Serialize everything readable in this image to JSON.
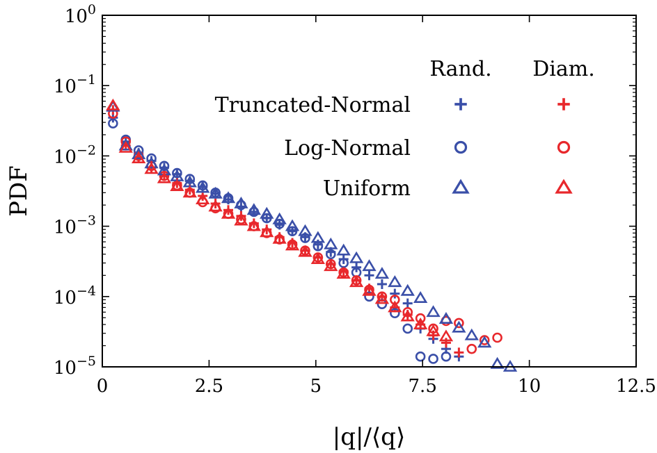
{
  "chart_data": {
    "type": "scatter",
    "title": "",
    "xlabel": "|q|/⟨q⟩",
    "ylabel": "PDF",
    "xlim": [
      0,
      12.5
    ],
    "ylim": [
      1e-05,
      1
    ],
    "yscale": "log",
    "x_ticks": [
      {
        "value": 0,
        "label": "0"
      },
      {
        "value": 2.5,
        "label": "2.5"
      },
      {
        "value": 5,
        "label": "5"
      },
      {
        "value": 7.5,
        "label": "7.5"
      },
      {
        "value": 10,
        "label": "10"
      },
      {
        "value": 12.5,
        "label": "12.5"
      }
    ],
    "y_ticks": [
      {
        "value": 1,
        "base": "10",
        "exp": "0"
      },
      {
        "value": 0.1,
        "base": "10",
        "exp": "−1"
      },
      {
        "value": 0.01,
        "base": "10",
        "exp": "−2"
      },
      {
        "value": 0.001,
        "base": "10",
        "exp": "−3"
      },
      {
        "value": 0.0001,
        "base": "10",
        "exp": "−4"
      },
      {
        "value": 1e-05,
        "base": "10",
        "exp": "−5"
      }
    ],
    "grid": false,
    "legend": {
      "placement": "top-right",
      "column_headers": [
        "Rand.",
        "Diam."
      ],
      "rows": [
        "Truncated-Normal",
        "Log-Normal",
        "Uniform"
      ]
    },
    "colors": {
      "rand": "#3a4fa8",
      "diam": "#e8282c"
    },
    "series": [
      {
        "distribution": "Truncated-Normal",
        "sampling": "Rand.",
        "marker": "plus",
        "color": "#3a4fa8",
        "x": [
          0.25,
          0.55,
          0.85,
          1.15,
          1.45,
          1.75,
          2.05,
          2.35,
          2.65,
          2.95,
          3.25,
          3.55,
          3.85,
          4.15,
          4.45,
          4.75,
          5.05,
          5.35,
          5.65,
          5.95,
          6.25,
          6.55,
          6.85,
          7.15,
          7.45,
          7.75,
          8.05,
          8.35
        ],
        "y": [
          0.035,
          0.016,
          0.011,
          0.0085,
          0.0068,
          0.0055,
          0.0044,
          0.0036,
          0.0029,
          0.0024,
          0.0019,
          0.0016,
          0.0013,
          0.00105,
          0.00085,
          0.0007,
          0.00055,
          0.00043,
          0.00034,
          0.00026,
          0.0002,
          0.00015,
          0.00011,
          8e-05,
          3.5e-05,
          2.5e-05,
          1.8e-05,
          1.4e-05
        ]
      },
      {
        "distribution": "Truncated-Normal",
        "sampling": "Diam.",
        "marker": "plus",
        "color": "#e8282c",
        "x": [
          0.25,
          0.55,
          0.85,
          1.15,
          1.45,
          1.75,
          2.05,
          2.35,
          2.65,
          2.95,
          3.25,
          3.55,
          3.85,
          4.15,
          4.45,
          4.75,
          5.05,
          5.35,
          5.65,
          5.95,
          6.25,
          6.55,
          6.85,
          7.15,
          7.45,
          7.75,
          8.05,
          8.35
        ],
        "y": [
          0.045,
          0.014,
          0.0095,
          0.0068,
          0.0052,
          0.0041,
          0.0033,
          0.0027,
          0.0021,
          0.0017,
          0.0014,
          0.0011,
          0.0009,
          0.0007,
          0.00058,
          0.00045,
          0.00036,
          0.00029,
          0.00023,
          0.00017,
          0.00013,
          0.0001,
          7e-05,
          5.5e-05,
          4e-05,
          2.8e-05,
          2.2e-05,
          1.6e-05
        ]
      },
      {
        "distribution": "Log-Normal",
        "sampling": "Rand.",
        "marker": "circle",
        "color": "#3a4fa8",
        "x": [
          0.25,
          0.55,
          0.85,
          1.15,
          1.45,
          1.75,
          2.05,
          2.35,
          2.65,
          2.95,
          3.25,
          3.55,
          3.85,
          4.15,
          4.45,
          4.75,
          5.05,
          5.35,
          5.65,
          5.95,
          6.25,
          6.55,
          6.85,
          7.15,
          7.45,
          7.75,
          8.05
        ],
        "y": [
          0.029,
          0.017,
          0.012,
          0.0092,
          0.0072,
          0.0057,
          0.0047,
          0.0038,
          0.003,
          0.0025,
          0.002,
          0.0016,
          0.0013,
          0.00108,
          0.00085,
          0.00068,
          0.00052,
          0.0004,
          0.0003,
          0.00022,
          0.0001,
          7.8e-05,
          5.8e-05,
          3.5e-05,
          1.4e-05,
          1.3e-05,
          1.4e-05
        ]
      },
      {
        "distribution": "Log-Normal",
        "sampling": "Diam.",
        "marker": "circle",
        "color": "#e8282c",
        "x": [
          0.25,
          0.55,
          0.85,
          1.15,
          1.45,
          1.75,
          2.05,
          2.35,
          2.65,
          2.95,
          3.25,
          3.55,
          3.85,
          4.15,
          4.45,
          4.75,
          5.05,
          5.35,
          5.65,
          5.95,
          6.25,
          6.55,
          6.85,
          7.15,
          7.45,
          7.75,
          8.05,
          8.35,
          8.65,
          8.95,
          9.25
        ],
        "y": [
          0.04,
          0.016,
          0.01,
          0.0072,
          0.0052,
          0.0038,
          0.003,
          0.0022,
          0.0018,
          0.0015,
          0.00125,
          0.001,
          0.0008,
          0.00065,
          0.00055,
          0.00045,
          0.00036,
          0.00029,
          0.00022,
          0.00017,
          0.000125,
          0.0001,
          9e-05,
          6e-05,
          4.9e-05,
          3.5e-05,
          4.5e-05,
          4.2e-05,
          1.8e-05,
          2.4e-05,
          2.6e-05
        ]
      },
      {
        "distribution": "Uniform",
        "sampling": "Rand.",
        "marker": "triangle",
        "color": "#3a4fa8",
        "x": [
          0.25,
          0.55,
          0.85,
          1.15,
          1.45,
          1.75,
          2.05,
          2.35,
          2.65,
          2.95,
          3.25,
          3.55,
          3.85,
          4.15,
          4.45,
          4.75,
          5.05,
          5.35,
          5.65,
          5.95,
          6.25,
          6.55,
          6.85,
          7.15,
          7.45,
          7.75,
          8.05,
          8.35,
          8.65,
          8.95,
          9.25,
          9.55
        ],
        "y": [
          0.05,
          0.014,
          0.0105,
          0.0078,
          0.0062,
          0.0051,
          0.0042,
          0.0035,
          0.0029,
          0.0025,
          0.0021,
          0.0017,
          0.0015,
          0.00125,
          0.001,
          0.00085,
          0.00068,
          0.00055,
          0.00045,
          0.00035,
          0.00027,
          0.00021,
          0.00016,
          0.00012,
          9.5e-05,
          6e-05,
          4.8e-05,
          3.6e-05,
          2.8e-05,
          2.2e-05,
          1.1e-05,
          1e-05
        ]
      },
      {
        "distribution": "Uniform",
        "sampling": "Diam.",
        "marker": "triangle",
        "color": "#e8282c",
        "x": [
          0.25,
          0.55,
          0.85,
          1.15,
          1.45,
          1.75,
          2.05,
          2.35,
          2.65,
          2.95,
          3.25,
          3.55,
          3.85,
          4.15,
          4.45,
          4.75,
          5.05,
          5.35,
          5.65,
          5.95,
          6.25,
          6.55,
          6.85,
          7.15,
          7.45,
          7.75,
          8.05
        ],
        "y": [
          0.052,
          0.013,
          0.0092,
          0.0065,
          0.0048,
          0.0037,
          0.003,
          0.0024,
          0.0019,
          0.0015,
          0.0012,
          0.001,
          0.00082,
          0.00066,
          0.00053,
          0.00043,
          0.00034,
          0.00027,
          0.00021,
          0.00016,
          0.00012,
          9.2e-05,
          7e-05,
          5.2e-05,
          4e-05,
          3.2e-05,
          2.7e-05
        ]
      }
    ]
  }
}
